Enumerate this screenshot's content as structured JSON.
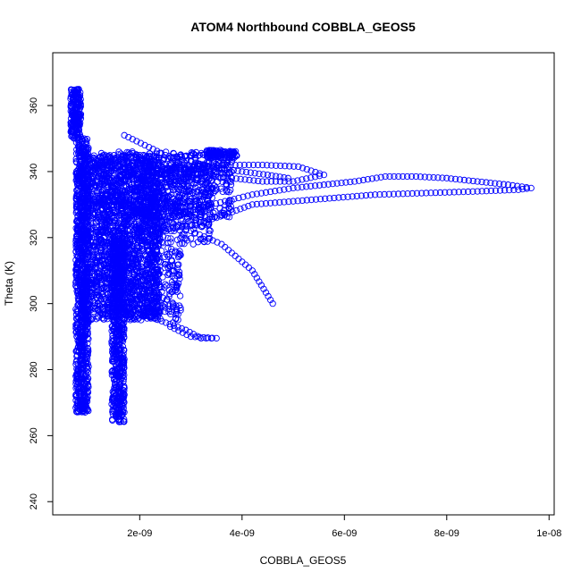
{
  "chart_data": {
    "type": "scatter",
    "title": "ATOM4 Northbound COBBLA_GEOS5",
    "xlabel": "COBBLA_GEOS5",
    "ylabel": "Theta (K)",
    "xlim": [
      3e-10,
      1.01e-08
    ],
    "ylim": [
      236,
      376
    ],
    "x_ticks": [
      {
        "value": 2e-09,
        "label": "2e-09"
      },
      {
        "value": 4e-09,
        "label": "4e-09"
      },
      {
        "value": 6e-09,
        "label": "6e-09"
      },
      {
        "value": 8e-09,
        "label": "8e-09"
      },
      {
        "value": 1e-08,
        "label": "1e-08"
      }
    ],
    "y_ticks": [
      {
        "value": 240,
        "label": "240"
      },
      {
        "value": 260,
        "label": "260"
      },
      {
        "value": 280,
        "label": "280"
      },
      {
        "value": 300,
        "label": "300"
      },
      {
        "value": 320,
        "label": "320"
      },
      {
        "value": 340,
        "label": "340"
      },
      {
        "value": 360,
        "label": "360"
      }
    ],
    "grid": false,
    "marker": "open-circle",
    "color": "#0000ff",
    "series": [
      {
        "values": [
          [
            6.5e-10,
            362
          ],
          [
            7e-10,
            358
          ],
          [
            8e-10,
            350
          ],
          [
            9e-10,
            336
          ],
          [
            8.5e-10,
            320
          ],
          [
            9e-10,
            305
          ],
          [
            8.5e-10,
            290
          ],
          [
            8.6e-10,
            276
          ],
          [
            8.3e-10,
            268
          ],
          [
            9e-10,
            300
          ],
          [
            1.1e-09,
            316
          ],
          [
            1.3e-09,
            326
          ],
          [
            1.5e-09,
            335
          ],
          [
            1.7e-09,
            341
          ],
          [
            2.2e-09,
            343
          ],
          [
            3e-09,
            345
          ],
          [
            3.6e-09,
            345
          ],
          [
            3.8e-09,
            343
          ],
          [
            3.2e-09,
            340
          ],
          [
            2.6e-09,
            336
          ],
          [
            2e-09,
            330
          ],
          [
            1.6e-09,
            322
          ],
          [
            1.5e-09,
            310
          ],
          [
            1.6e-09,
            296
          ],
          [
            1.6e-09,
            282
          ],
          [
            1.6e-09,
            272
          ],
          [
            1.6e-09,
            265
          ]
        ]
      },
      {
        "values": [
          [
            1.6e-09,
            300
          ],
          [
            2.1e-09,
            302
          ],
          [
            2.8e-09,
            298
          ],
          [
            2.6e-09,
            293
          ],
          [
            3e-09,
            290
          ],
          [
            3.5e-09,
            289.5
          ],
          [
            3.2e-09,
            289.5
          ],
          [
            2.9e-09,
            292
          ],
          [
            2.2e-09,
            296
          ],
          [
            1.7e-09,
            298
          ]
        ]
      },
      {
        "values": [
          [
            1.7e-09,
            330
          ],
          [
            2.4e-09,
            322
          ],
          [
            3e-09,
            324
          ],
          [
            3.5e-09,
            326
          ],
          [
            4.2e-09,
            330
          ],
          [
            5e-09,
            331
          ],
          [
            5.8e-09,
            332
          ],
          [
            6.6e-09,
            333
          ],
          [
            7.6e-09,
            333.5
          ],
          [
            8.6e-09,
            334
          ],
          [
            9.4e-09,
            334.5
          ],
          [
            9.65e-09,
            335
          ],
          [
            9.2e-09,
            336
          ],
          [
            8.6e-09,
            337
          ],
          [
            8e-09,
            338
          ],
          [
            7.4e-09,
            338.5
          ],
          [
            6.8e-09,
            338.5
          ],
          [
            6.2e-09,
            337
          ],
          [
            5.6e-09,
            336
          ],
          [
            5e-09,
            335
          ],
          [
            4.2e-09,
            333
          ],
          [
            3.4e-09,
            330
          ],
          [
            2.6e-09,
            326
          ],
          [
            2e-09,
            322
          ]
        ]
      },
      {
        "values": [
          [
            2e-09,
            340
          ],
          [
            2.8e-09,
            341
          ],
          [
            3.6e-09,
            342
          ],
          [
            4.4e-09,
            342
          ],
          [
            5.1e-09,
            341.5
          ],
          [
            5.6e-09,
            339
          ],
          [
            5e-09,
            337
          ],
          [
            4.4e-09,
            337
          ],
          [
            3.8e-09,
            338
          ],
          [
            3.2e-09,
            339
          ],
          [
            2.6e-09,
            339.5
          ],
          [
            2e-09,
            338
          ]
        ]
      },
      {
        "values": [
          [
            4.6e-09,
            300
          ],
          [
            4.2e-09,
            310
          ],
          [
            3.6e-09,
            318
          ],
          [
            3e-09,
            322
          ],
          [
            2.4e-09,
            326
          ],
          [
            1.8e-09,
            330
          ],
          [
            1.4e-09,
            334
          ],
          [
            1.2e-09,
            340
          ],
          [
            1.1e-09,
            344
          ]
        ]
      },
      {
        "values": [
          [
            1.7e-09,
            351
          ],
          [
            2.1e-09,
            348
          ],
          [
            2.5e-09,
            345
          ],
          [
            3e-09,
            343
          ],
          [
            3.5e-09,
            341
          ],
          [
            4e-09,
            340
          ],
          [
            4.5e-09,
            339
          ],
          [
            4.9e-09,
            338
          ]
        ]
      }
    ],
    "clusters": [
      {
        "x": [
          6.5e-10,
          8.5e-10
        ],
        "y": [
          350,
          365
        ],
        "count": 200
      },
      {
        "x": [
          7.5e-10,
          1e-09
        ],
        "y": [
          267,
          350
        ],
        "count": 900
      },
      {
        "x": [
          1.45e-09,
          1.7e-09
        ],
        "y": [
          264,
          320
        ],
        "count": 600
      },
      {
        "x": [
          9e-10,
          2.4e-09
        ],
        "y": [
          295,
          345
        ],
        "count": 1800
      },
      {
        "x": [
          1.2e-09,
          3.4e-09
        ],
        "y": [
          318,
          346
        ],
        "count": 700
      },
      {
        "x": [
          2e-09,
          3.8e-09
        ],
        "y": [
          326,
          343
        ],
        "count": 400
      },
      {
        "x": [
          1.6e-09,
          2.8e-09
        ],
        "y": [
          295,
          318
        ],
        "count": 300
      },
      {
        "x": [
          3.3e-09,
          3.9e-09
        ],
        "y": [
          344,
          346.5
        ],
        "count": 120
      }
    ]
  }
}
